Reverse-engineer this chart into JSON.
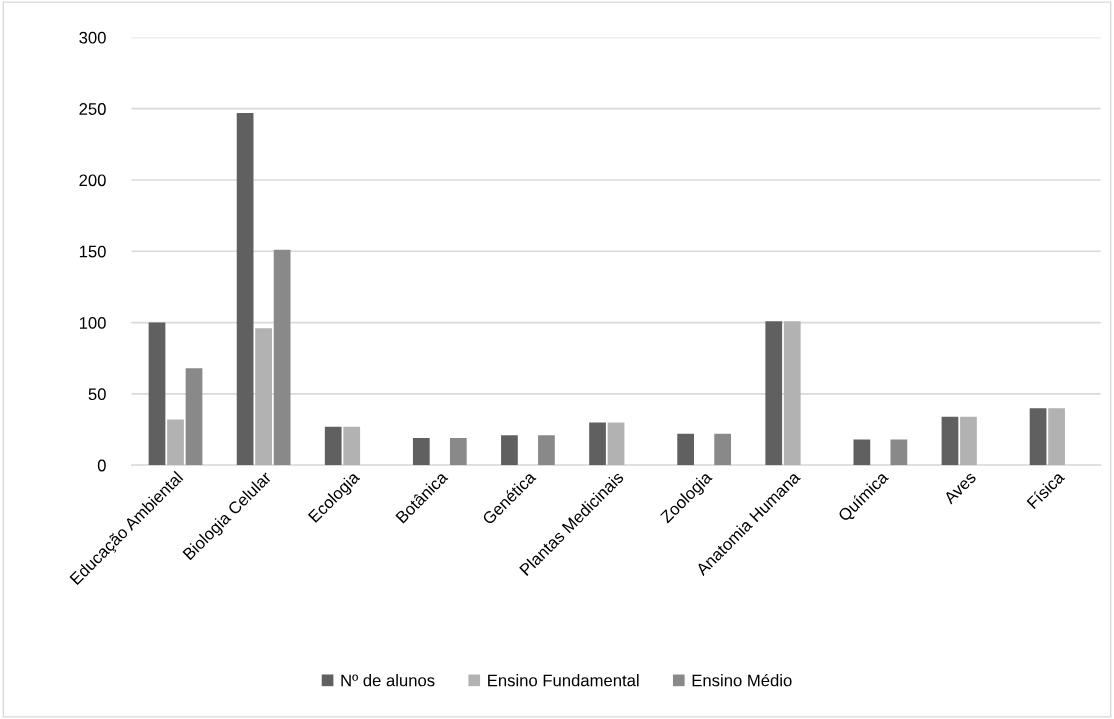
{
  "chart_data": {
    "type": "bar",
    "categories": [
      "Educação Ambiental",
      "Biologia Celular",
      "Ecologia",
      "Botânica",
      "Genética",
      "Plantas Medicinais",
      "Zoologia",
      "Anatomia Humana",
      "Química",
      "Aves",
      "Física"
    ],
    "series": [
      {
        "name": "Nº de alunos",
        "color": "#606060",
        "values": [
          100,
          247,
          27,
          19,
          21,
          30,
          22,
          101,
          18,
          34,
          40
        ]
      },
      {
        "name": "Ensino Fundamental",
        "color": "#b2b2b2",
        "values": [
          32,
          96,
          27,
          null,
          null,
          30,
          null,
          101,
          null,
          34,
          40
        ]
      },
      {
        "name": "Ensino Médio",
        "color": "#898989",
        "values": [
          68,
          151,
          null,
          19,
          21,
          null,
          22,
          null,
          18,
          null,
          null
        ]
      }
    ],
    "ylim": [
      0,
      300
    ],
    "yticks": [
      0,
      50,
      100,
      150,
      200,
      250,
      300
    ],
    "grid": "y",
    "legend": "bottom"
  }
}
